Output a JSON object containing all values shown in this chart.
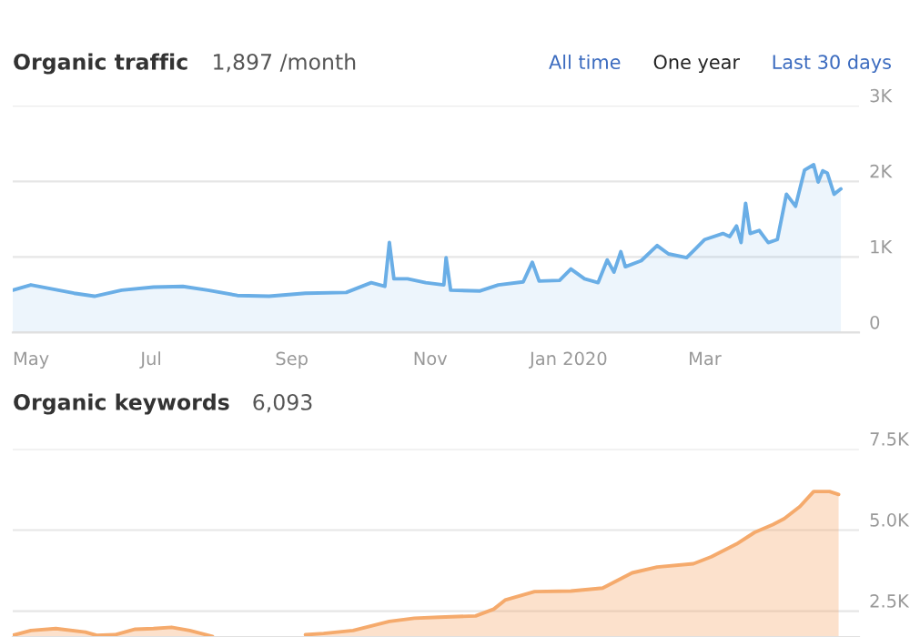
{
  "chart_data": [
    {
      "type": "area",
      "title": "Organic traffic",
      "subtitle": "1,897 /month",
      "annotations": [
        "All time",
        "One year",
        "Last 30 days"
      ],
      "x": [
        "2019-05-01",
        "2019-05-09",
        "2019-05-28",
        "2019-06-06",
        "2019-06-18",
        "2019-07-02",
        "2019-07-15",
        "2019-07-26",
        "2019-08-08",
        "2019-08-22",
        "2019-09-07",
        "2019-09-25",
        "2019-10-06",
        "2019-10-12",
        "2019-10-14",
        "2019-10-16",
        "2019-10-22",
        "2019-10-30",
        "2019-11-07",
        "2019-11-08",
        "2019-11-10",
        "2019-11-23",
        "2019-12-01",
        "2019-12-12",
        "2019-12-16",
        "2019-12-19",
        "2019-12-28",
        "2020-01-02",
        "2020-01-08",
        "2020-01-14",
        "2020-01-18",
        "2020-01-21",
        "2020-01-24",
        "2020-01-26",
        "2020-02-02",
        "2020-02-09",
        "2020-02-14",
        "2020-02-22",
        "2020-03-01",
        "2020-03-09",
        "2020-03-12",
        "2020-03-15",
        "2020-03-17",
        "2020-03-19",
        "2020-03-21",
        "2020-03-25",
        "2020-03-29",
        "2020-04-02",
        "2020-04-06",
        "2020-04-10",
        "2020-04-14",
        "2020-04-18",
        "2020-04-20",
        "2020-04-22",
        "2020-04-24",
        "2020-04-27",
        "2020-04-30"
      ],
      "series": [
        {
          "color": "#6aaee6",
          "values": [
            560,
            630,
            520,
            480,
            560,
            600,
            610,
            560,
            490,
            480,
            520,
            530,
            660,
            610,
            1190,
            710,
            710,
            660,
            630,
            990,
            560,
            550,
            630,
            670,
            930,
            680,
            690,
            840,
            710,
            660,
            960,
            800,
            1070,
            870,
            950,
            1150,
            1040,
            990,
            1230,
            1310,
            1270,
            1410,
            1190,
            1710,
            1310,
            1350,
            1190,
            1230,
            1830,
            1670,
            2150,
            2220,
            1990,
            2140,
            2110,
            1830,
            1900
          ]
        }
      ],
      "xlim": [
        "2019-05-01",
        "2020-05-08"
      ],
      "xticks": [
        {
          "value": "2019-05-01",
          "label": "May"
        },
        {
          "value": "2019-07-01",
          "label": "Jul"
        },
        {
          "value": "2019-09-01",
          "label": "Sep"
        },
        {
          "value": "2019-11-01",
          "label": "Nov"
        },
        {
          "value": "2020-01-01",
          "label": "Jan 2020"
        },
        {
          "value": "2020-03-01",
          "label": "Mar"
        }
      ],
      "ylim": [
        0,
        3000
      ],
      "yticks": [
        0,
        {
          "value": 1000,
          "label": "1K"
        },
        {
          "value": 2000,
          "label": "2K"
        },
        {
          "value": 3000,
          "label": "3K"
        }
      ],
      "grid": "y"
    },
    {
      "type": "area",
      "title": "Organic keywords",
      "subtitle": "6,093",
      "x": [
        "2019-05-01",
        "2019-05-09",
        "2019-05-20",
        "2019-06-02",
        "2019-06-07",
        "2019-06-15",
        "2019-06-24",
        "2019-07-02",
        "2019-07-10",
        "2019-07-18",
        "2019-07-28",
        "2019-08-08",
        "2019-08-22",
        "2019-09-07",
        "2019-09-15",
        "2019-09-28",
        "2019-10-14",
        "2019-10-25",
        "2019-11-05",
        "2019-11-21",
        "2019-11-29",
        "2019-12-04",
        "2019-12-17",
        "2020-01-02",
        "2020-01-16",
        "2020-01-29",
        "2020-02-09",
        "2020-02-25",
        "2020-03-04",
        "2020-03-15",
        "2020-03-23",
        "2020-03-31",
        "2020-04-05",
        "2020-04-12",
        "2020-04-18",
        "2020-04-25",
        "2020-04-29"
      ],
      "series": [
        {
          "color": "#f5aa6c",
          "values": [
            1750,
            1900,
            1960,
            1850,
            1750,
            1770,
            1940,
            1960,
            2000,
            1900,
            1720,
            null,
            null,
            1770,
            1810,
            1900,
            2180,
            2280,
            2310,
            2350,
            2560,
            2840,
            3100,
            3120,
            3210,
            3680,
            3860,
            3960,
            4180,
            4570,
            4930,
            5170,
            5350,
            5730,
            6190,
            6190,
            6100
          ]
        }
      ],
      "xlim": [
        "2019-05-01",
        "2020-05-08"
      ],
      "ylim": [
        1700,
        7500
      ],
      "yticks": [
        {
          "value": 2500,
          "label": "2.5K"
        },
        {
          "value": 5000,
          "label": "5.0K"
        },
        {
          "value": 7500,
          "label": "7.5K"
        }
      ],
      "tick_labels": "y",
      "grid": "y"
    }
  ]
}
